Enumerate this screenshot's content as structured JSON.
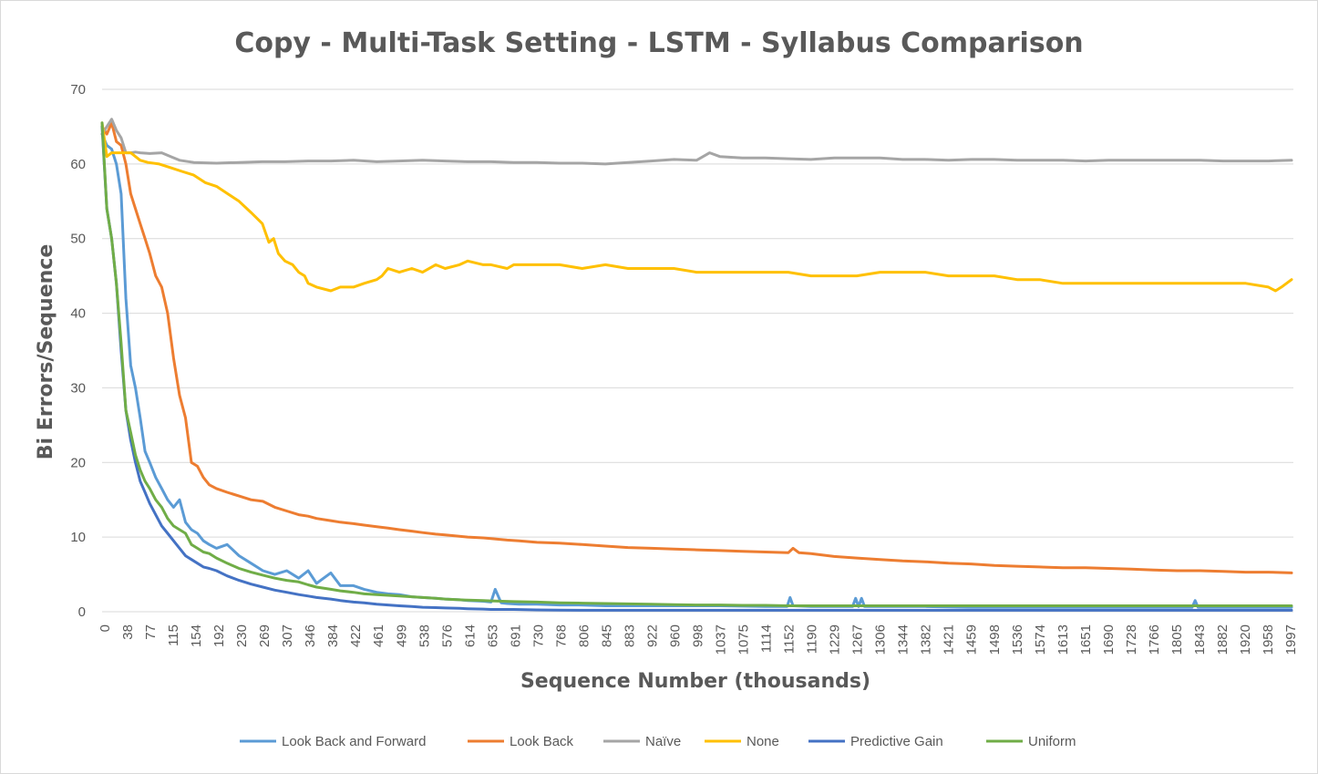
{
  "chart_data": {
    "type": "line",
    "title": "Copy - Multi-Task Setting - LSTM - Syllabus Comparison",
    "xlabel": "Sequence Number (thousands)",
    "ylabel": "Bi Errors/Sequence",
    "ylim": [
      0,
      70
    ],
    "xlim": [
      0,
      2000
    ],
    "y_ticks": [
      "0",
      "10",
      "20",
      "30",
      "40",
      "50",
      "60",
      "70"
    ],
    "x_ticks": [
      "0",
      "38",
      "77",
      "115",
      "154",
      "192",
      "230",
      "269",
      "307",
      "346",
      "384",
      "422",
      "461",
      "499",
      "538",
      "576",
      "614",
      "653",
      "691",
      "730",
      "768",
      "806",
      "845",
      "883",
      "922",
      "960",
      "998",
      "1037",
      "1075",
      "1114",
      "1152",
      "1190",
      "1229",
      "1267",
      "1306",
      "1344",
      "1382",
      "1421",
      "1459",
      "1498",
      "1536",
      "1574",
      "1613",
      "1651",
      "1690",
      "1728",
      "1766",
      "1805",
      "1843",
      "1882",
      "1920",
      "1958",
      "1997"
    ],
    "grid": true,
    "legend_position": "bottom",
    "series": [
      {
        "name": "Look Back and Forward",
        "color": "#5b9bd5",
        "x": [
          0,
          8,
          16,
          24,
          32,
          40,
          48,
          56,
          64,
          72,
          80,
          90,
          100,
          110,
          120,
          130,
          140,
          150,
          160,
          170,
          180,
          192,
          210,
          230,
          250,
          270,
          290,
          310,
          330,
          346,
          360,
          384,
          400,
          422,
          440,
          461,
          480,
          499,
          520,
          538,
          560,
          576,
          600,
          614,
          640,
          653,
          660,
          670,
          680,
          700,
          730,
          768,
          800,
          845,
          900,
          960,
          1037,
          1114,
          1150,
          1155,
          1160,
          1190,
          1229,
          1260,
          1265,
          1270,
          1275,
          1280,
          1306,
          1382,
          1459,
          1536,
          1613,
          1690,
          1766,
          1830,
          1835,
          1840,
          1882,
          1958,
          1997
        ],
        "y": [
          64,
          62.5,
          62,
          60,
          56,
          42,
          33,
          30,
          26,
          21.5,
          20,
          18,
          16.5,
          15,
          14,
          15,
          12,
          11,
          10.5,
          9.5,
          9,
          8.5,
          9,
          7.5,
          6.5,
          5.5,
          5,
          5.5,
          4.5,
          5.5,
          3.8,
          5.2,
          3.5,
          3.5,
          3,
          2.6,
          2.4,
          2.3,
          2,
          1.9,
          1.8,
          1.7,
          1.6,
          1.5,
          1.4,
          1.3,
          3,
          1.2,
          1.1,
          1.0,
          1.0,
          0.9,
          0.9,
          0.8,
          0.8,
          0.8,
          0.8,
          0.7,
          0.7,
          1.9,
          0.8,
          0.7,
          0.7,
          0.7,
          1.8,
          0.7,
          1.8,
          0.7,
          0.7,
          0.7,
          0.6,
          0.6,
          0.6,
          0.6,
          0.6,
          0.6,
          1.5,
          0.6,
          0.6,
          0.6,
          0.6
        ]
      },
      {
        "name": "Look Back",
        "color": "#ed7d31",
        "x": [
          0,
          8,
          16,
          24,
          32,
          40,
          48,
          56,
          64,
          72,
          80,
          90,
          100,
          110,
          120,
          130,
          140,
          150,
          160,
          170,
          180,
          192,
          210,
          230,
          250,
          270,
          290,
          310,
          330,
          346,
          360,
          384,
          400,
          422,
          440,
          461,
          480,
          499,
          520,
          538,
          560,
          576,
          600,
          614,
          640,
          653,
          680,
          700,
          730,
          768,
          806,
          845,
          883,
          922,
          960,
          998,
          1037,
          1075,
          1114,
          1152,
          1160,
          1170,
          1190,
          1229,
          1267,
          1306,
          1344,
          1382,
          1421,
          1459,
          1498,
          1536,
          1574,
          1613,
          1651,
          1690,
          1728,
          1766,
          1805,
          1843,
          1882,
          1920,
          1958,
          1997
        ],
        "y": [
          65,
          64,
          65.5,
          63,
          62.5,
          60,
          56,
          54,
          52,
          50,
          48,
          45,
          43.5,
          40,
          34,
          29,
          26,
          20,
          19.5,
          18,
          17,
          16.5,
          16,
          15.5,
          15,
          14.8,
          14,
          13.5,
          13,
          12.8,
          12.5,
          12.2,
          12,
          11.8,
          11.6,
          11.4,
          11.2,
          11,
          10.8,
          10.6,
          10.4,
          10.3,
          10.1,
          10,
          9.9,
          9.8,
          9.6,
          9.5,
          9.3,
          9.2,
          9,
          8.8,
          8.6,
          8.5,
          8.4,
          8.3,
          8.2,
          8.1,
          8,
          7.9,
          8.5,
          7.9,
          7.8,
          7.4,
          7.2,
          7,
          6.8,
          6.7,
          6.5,
          6.4,
          6.2,
          6.1,
          6,
          5.9,
          5.9,
          5.8,
          5.7,
          5.6,
          5.5,
          5.5,
          5.4,
          5.3,
          5.3,
          5.2
        ]
      },
      {
        "name": "Naïve",
        "color": "#a5a5a5",
        "x": [
          0,
          8,
          16,
          24,
          32,
          40,
          48,
          56,
          64,
          80,
          100,
          115,
          130,
          154,
          192,
          230,
          269,
          307,
          346,
          384,
          422,
          461,
          499,
          538,
          576,
          614,
          653,
          691,
          730,
          768,
          806,
          845,
          883,
          922,
          960,
          998,
          1020,
          1037,
          1075,
          1114,
          1152,
          1190,
          1229,
          1267,
          1306,
          1344,
          1382,
          1421,
          1459,
          1498,
          1536,
          1574,
          1613,
          1651,
          1690,
          1728,
          1766,
          1805,
          1843,
          1882,
          1920,
          1958,
          1997
        ],
        "y": [
          64,
          65,
          66,
          64.5,
          63.5,
          61.5,
          61.5,
          61.6,
          61.5,
          61.4,
          61.5,
          61,
          60.5,
          60.2,
          60.1,
          60.2,
          60.3,
          60.3,
          60.4,
          60.4,
          60.5,
          60.3,
          60.4,
          60.5,
          60.4,
          60.3,
          60.3,
          60.2,
          60.2,
          60.1,
          60.1,
          60,
          60.2,
          60.4,
          60.6,
          60.5,
          61.5,
          61,
          60.8,
          60.8,
          60.7,
          60.6,
          60.8,
          60.8,
          60.8,
          60.6,
          60.6,
          60.5,
          60.6,
          60.6,
          60.5,
          60.5,
          60.5,
          60.4,
          60.5,
          60.5,
          60.5,
          60.5,
          60.5,
          60.4,
          60.4,
          60.4,
          60.5
        ]
      },
      {
        "name": "None",
        "color": "#ffc000",
        "x": [
          0,
          8,
          16,
          24,
          32,
          40,
          48,
          56,
          64,
          77,
          96,
          115,
          134,
          154,
          173,
          192,
          211,
          230,
          250,
          269,
          280,
          288,
          296,
          307,
          320,
          330,
          340,
          346,
          360,
          384,
          400,
          422,
          440,
          461,
          470,
          480,
          499,
          520,
          538,
          560,
          576,
          600,
          614,
          640,
          653,
          680,
          691,
          730,
          768,
          806,
          845,
          883,
          922,
          960,
          998,
          1037,
          1075,
          1114,
          1152,
          1190,
          1229,
          1267,
          1306,
          1344,
          1382,
          1421,
          1459,
          1498,
          1536,
          1574,
          1613,
          1651,
          1690,
          1728,
          1766,
          1805,
          1843,
          1882,
          1920,
          1958,
          1970,
          1980,
          1997
        ],
        "y": [
          65.5,
          61,
          61.5,
          61.5,
          61.5,
          61.5,
          61.5,
          61,
          60.5,
          60.2,
          60,
          59.5,
          59,
          58.5,
          57.5,
          57,
          56,
          55,
          53.5,
          52,
          49.5,
          50,
          48,
          47,
          46.5,
          45.5,
          45,
          44,
          43.5,
          43,
          43.5,
          43.5,
          44,
          44.5,
          45,
          46,
          45.5,
          46,
          45.5,
          46.5,
          46,
          46.5,
          47,
          46.5,
          46.5,
          46,
          46.5,
          46.5,
          46.5,
          46,
          46.5,
          46,
          46,
          46,
          45.5,
          45.5,
          45.5,
          45.5,
          45.5,
          45,
          45,
          45,
          45.5,
          45.5,
          45.5,
          45,
          45,
          45,
          44.5,
          44.5,
          44,
          44,
          44,
          44,
          44,
          44,
          44,
          44,
          44,
          43.5,
          43,
          43.5,
          44.5
        ]
      },
      {
        "name": "Predictive Gain",
        "color": "#4472c4",
        "x": [
          0,
          8,
          16,
          24,
          32,
          40,
          48,
          56,
          64,
          72,
          80,
          90,
          100,
          110,
          120,
          130,
          140,
          150,
          160,
          170,
          180,
          192,
          210,
          230,
          250,
          270,
          290,
          310,
          330,
          346,
          360,
          384,
          400,
          422,
          440,
          461,
          480,
          499,
          520,
          538,
          560,
          576,
          600,
          614,
          640,
          653,
          691,
          730,
          768,
          806,
          845,
          883,
          922,
          960,
          998,
          1037,
          1075,
          1114,
          1152,
          1190,
          1229,
          1267,
          1306,
          1344,
          1382,
          1421,
          1459,
          1498,
          1536,
          1574,
          1613,
          1651,
          1690,
          1728,
          1766,
          1805,
          1843,
          1882,
          1920,
          1958,
          1997
        ],
        "y": [
          65,
          54,
          50,
          44,
          35,
          27,
          23,
          20,
          17.5,
          16,
          14.5,
          13,
          11.5,
          10.5,
          9.5,
          8.5,
          7.5,
          7,
          6.5,
          6,
          5.8,
          5.5,
          4.8,
          4.2,
          3.7,
          3.3,
          2.9,
          2.6,
          2.3,
          2.1,
          1.9,
          1.7,
          1.5,
          1.3,
          1.2,
          1.0,
          0.9,
          0.8,
          0.7,
          0.6,
          0.55,
          0.5,
          0.45,
          0.4,
          0.35,
          0.3,
          0.3,
          0.25,
          0.22,
          0.2,
          0.2,
          0.2,
          0.2,
          0.2,
          0.2,
          0.2,
          0.2,
          0.2,
          0.2,
          0.2,
          0.2,
          0.2,
          0.2,
          0.2,
          0.2,
          0.2,
          0.2,
          0.2,
          0.2,
          0.2,
          0.2,
          0.2,
          0.2,
          0.2,
          0.2,
          0.2,
          0.2,
          0.2,
          0.2,
          0.2,
          0.2
        ]
      },
      {
        "name": "Uniform",
        "color": "#70ad47",
        "x": [
          0,
          8,
          16,
          24,
          32,
          40,
          48,
          56,
          64,
          72,
          80,
          90,
          100,
          110,
          120,
          130,
          140,
          150,
          160,
          170,
          180,
          192,
          210,
          230,
          250,
          270,
          290,
          310,
          330,
          346,
          360,
          384,
          400,
          422,
          440,
          461,
          480,
          499,
          520,
          538,
          560,
          576,
          600,
          614,
          640,
          653,
          691,
          730,
          768,
          806,
          845,
          883,
          922,
          960,
          998,
          1037,
          1075,
          1114,
          1152,
          1190,
          1229,
          1267,
          1306,
          1344,
          1382,
          1421,
          1459,
          1498,
          1536,
          1574,
          1613,
          1651,
          1690,
          1728,
          1766,
          1805,
          1843,
          1882,
          1920,
          1958,
          1997
        ],
        "y": [
          65.5,
          54,
          50,
          44,
          36,
          27,
          24,
          21,
          19,
          17.5,
          16.5,
          15,
          14,
          12.5,
          11.5,
          11,
          10.5,
          9,
          8.5,
          8,
          7.8,
          7.2,
          6.5,
          5.8,
          5.3,
          4.9,
          4.5,
          4.2,
          4.0,
          3.6,
          3.3,
          3.0,
          2.8,
          2.6,
          2.4,
          2.3,
          2.2,
          2.1,
          2.0,
          1.9,
          1.8,
          1.7,
          1.6,
          1.55,
          1.5,
          1.45,
          1.35,
          1.3,
          1.2,
          1.15,
          1.1,
          1.05,
          1.0,
          0.95,
          0.9,
          0.9,
          0.85,
          0.85,
          0.8,
          0.8,
          0.8,
          0.8,
          0.8,
          0.8,
          0.8,
          0.8,
          0.8,
          0.8,
          0.8,
          0.8,
          0.8,
          0.8,
          0.8,
          0.8,
          0.8,
          0.8,
          0.8,
          0.8,
          0.8,
          0.8,
          0.8
        ]
      }
    ]
  }
}
